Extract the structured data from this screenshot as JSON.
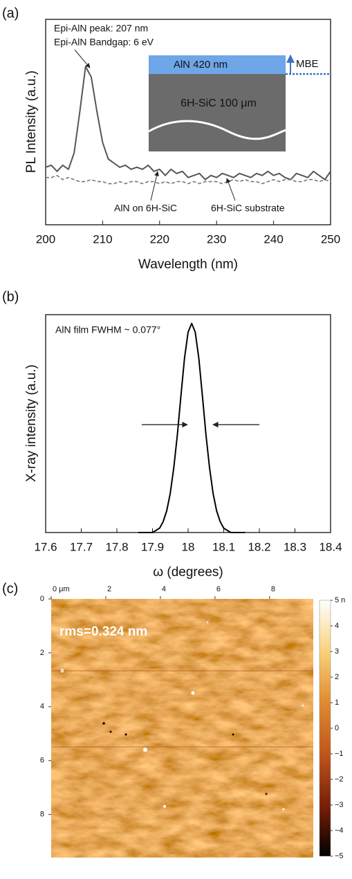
{
  "chart_data": [
    {
      "type": "line",
      "panel_label": "(a)",
      "x_label": "Wavelength (nm)",
      "y_label": "PL Intensity (a.u.)",
      "x": [
        200,
        201,
        202,
        203,
        204,
        205,
        206,
        207,
        208,
        209,
        210,
        211,
        212,
        213,
        214,
        215,
        216,
        217,
        218,
        219,
        220,
        221,
        222,
        223,
        224,
        225,
        226,
        227,
        228,
        229,
        230,
        231,
        232,
        233,
        234,
        235,
        236,
        237,
        238,
        239,
        240,
        241,
        242,
        243,
        244,
        245,
        246,
        247,
        248,
        249,
        250
      ],
      "series": [
        {
          "name": "AlN on 6H-SiC",
          "color": "#555555",
          "linestyle": "solid",
          "values": [
            28,
            29,
            26,
            29,
            27,
            35,
            55,
            77,
            72,
            55,
            40,
            32,
            30,
            28,
            29,
            27,
            28,
            27,
            29,
            26,
            27,
            24,
            27,
            25,
            26,
            23,
            24,
            25,
            22,
            24,
            23,
            25,
            24,
            23,
            25,
            24,
            23,
            25,
            24,
            26,
            24,
            25,
            23,
            22,
            25,
            24,
            23,
            26,
            24,
            22,
            26
          ]
        },
        {
          "name": "6H-SiC substrate",
          "color": "#777777",
          "linestyle": "dashed",
          "values": [
            23,
            23,
            24,
            22,
            23,
            22,
            21,
            21,
            22,
            21,
            21,
            20,
            20,
            21,
            20,
            21,
            21,
            20,
            21,
            21,
            20,
            21,
            20,
            21,
            21,
            20,
            21,
            20,
            21,
            21,
            21,
            20,
            21,
            22,
            21,
            22,
            21,
            21,
            20,
            21,
            22,
            21,
            22,
            22,
            21,
            21,
            22,
            22,
            21,
            22,
            21
          ]
        }
      ],
      "xlim": [
        200,
        250
      ],
      "xticks": [
        200,
        210,
        220,
        230,
        240,
        250
      ],
      "ylim": [
        0,
        100
      ],
      "annotations": [
        "Epi-AlN peak: 207 nm",
        "Epi-AlN Bandgap: 6 eV"
      ],
      "inset": {
        "layers": [
          "AlN 420 nm",
          "6H-SiC 100 μm"
        ],
        "layer_colors": [
          "#6ea6e8",
          "#6b6b6b"
        ],
        "growth": "MBE",
        "growth_color": "#3f72c6"
      }
    },
    {
      "type": "line",
      "panel_label": "(b)",
      "x_label": "ω (degrees)",
      "y_label": "X-ray intensity (a.u.)",
      "x": [
        17.86,
        17.87,
        17.88,
        17.89,
        17.9,
        17.91,
        17.92,
        17.93,
        17.94,
        17.95,
        17.96,
        17.97,
        17.98,
        17.99,
        18,
        18.01,
        18.02,
        18.03,
        18.04,
        18.05,
        18.06,
        18.07,
        18.08,
        18.09,
        18.1,
        18.11,
        18.12,
        18.13,
        18.14,
        18.15,
        18.16
      ],
      "series": [
        {
          "name": null,
          "color": "#000000",
          "linestyle": "solid",
          "values": [
            0,
            0,
            0,
            0,
            0,
            1,
            2,
            5,
            10,
            18,
            30,
            45,
            63,
            80,
            92,
            96,
            92,
            80,
            63,
            45,
            30,
            18,
            10,
            5,
            2,
            1,
            0,
            0,
            0,
            0,
            0
          ]
        }
      ],
      "xlim": [
        17.6,
        18.4
      ],
      "xticks": [
        17.6,
        17.7,
        17.8,
        17.9,
        18,
        18.1,
        18.2,
        18.3,
        18.4
      ],
      "ylim": [
        0,
        100
      ],
      "annotations": [
        "AlN film FWHM ~ 0.077°"
      ]
    },
    {
      "type": "image",
      "panel_label": "(c)",
      "xlim": [
        0,
        9.6
      ],
      "ylim": [
        0,
        9.6
      ],
      "xticks": [
        {
          "value": 0,
          "label": "0 μm"
        },
        2,
        4,
        6,
        8
      ],
      "yticks": [
        0,
        2,
        4,
        6,
        8
      ],
      "zlim": [
        -5,
        5
      ],
      "zticks": [
        {
          "value": 5,
          "label": "5 n"
        },
        4,
        3,
        2,
        1,
        0,
        {
          "value": -1,
          "label": "−1"
        },
        {
          "value": -2,
          "label": "−2"
        },
        {
          "value": -3,
          "label": "−3"
        },
        {
          "value": -4,
          "label": "−4"
        },
        {
          "value": -5,
          "label": "−5"
        }
      ],
      "colormap": [
        "#000000",
        "#7a2008",
        "#c0561a",
        "#e08a30",
        "#f8d27a",
        "#ffffff"
      ],
      "annotations": [
        "rms=0.324 nm"
      ]
    }
  ]
}
